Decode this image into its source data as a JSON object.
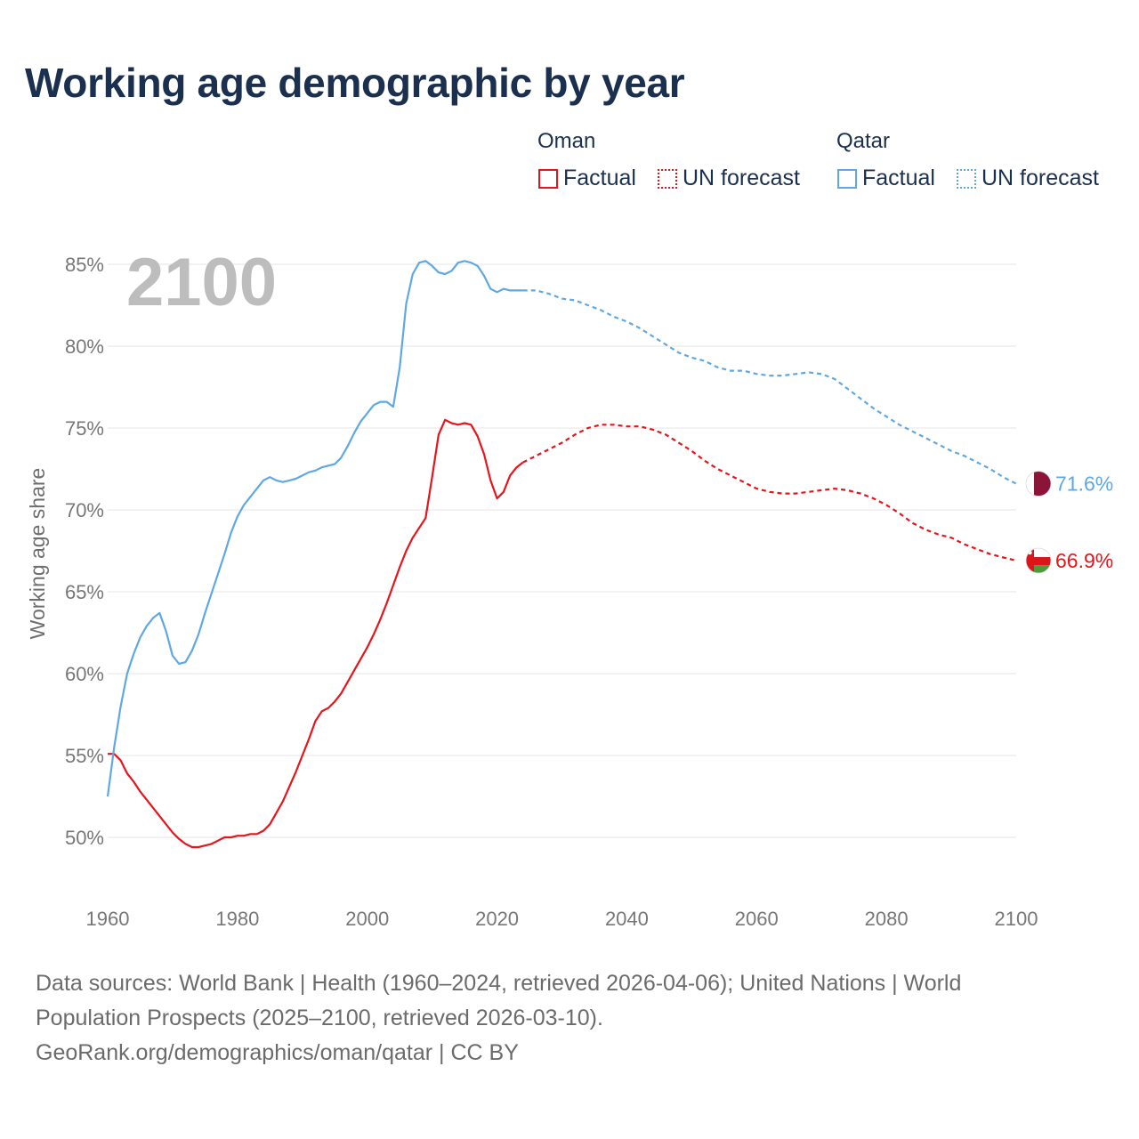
{
  "title": "Working age demographic by year",
  "legend": {
    "groups": [
      {
        "name": "Oman",
        "color": "#e8141b",
        "items": [
          {
            "label": "Factual",
            "style": "solid"
          },
          {
            "label": "UN forecast",
            "style": "dotted"
          }
        ]
      },
      {
        "name": "Qatar",
        "color": "#5fa8e4",
        "items": [
          {
            "label": "Factual",
            "style": "solid"
          },
          {
            "label": "UN forecast",
            "style": "dotted"
          }
        ]
      }
    ]
  },
  "footer": {
    "line1": "Data sources: World Bank | Health (1960–2024, retrieved 2026-04-06); United Nations | World",
    "line2": "Population Prospects (2025–2100, retrieved 2026-03-10).",
    "line3": "GeoRank.org/demographics/oman/qatar | CC BY"
  },
  "chart_data": {
    "type": "line",
    "title": "Working age demographic by year",
    "year_label": "2100",
    "xlabel": "",
    "ylabel": "Working age share",
    "xlim": [
      1960,
      2100
    ],
    "ylim": [
      48,
      86
    ],
    "x_ticks": [
      1960,
      1980,
      2000,
      2020,
      2040,
      2060,
      2080,
      2100
    ],
    "x_tick_labels": [
      "1960",
      "1980",
      "2000",
      "2020",
      "2040",
      "2060",
      "2080",
      "2100"
    ],
    "y_ticks": [
      50,
      55,
      60,
      65,
      70,
      75,
      80,
      85
    ],
    "y_tick_labels": [
      "50%",
      "55%",
      "60%",
      "65%",
      "70%",
      "75%",
      "80%",
      "85%"
    ],
    "grid": true,
    "forecast_start": 2024,
    "series": [
      {
        "name": "Oman",
        "color": "#e8141b",
        "end_label": "66.9%",
        "flag_icon": "oman-flag-icon",
        "points": [
          [
            1960,
            55.1
          ],
          [
            1961,
            55.1
          ],
          [
            1962,
            54.7
          ],
          [
            1963,
            53.9
          ],
          [
            1964,
            53.4
          ],
          [
            1965,
            52.8
          ],
          [
            1966,
            52.3
          ],
          [
            1967,
            51.8
          ],
          [
            1968,
            51.3
          ],
          [
            1969,
            50.8
          ],
          [
            1970,
            50.3
          ],
          [
            1971,
            49.9
          ],
          [
            1972,
            49.6
          ],
          [
            1973,
            49.4
          ],
          [
            1974,
            49.4
          ],
          [
            1975,
            49.5
          ],
          [
            1976,
            49.6
          ],
          [
            1977,
            49.8
          ],
          [
            1978,
            50.0
          ],
          [
            1979,
            50.0
          ],
          [
            1980,
            50.1
          ],
          [
            1981,
            50.1
          ],
          [
            1982,
            50.2
          ],
          [
            1983,
            50.2
          ],
          [
            1984,
            50.4
          ],
          [
            1985,
            50.8
          ],
          [
            1986,
            51.5
          ],
          [
            1987,
            52.2
          ],
          [
            1988,
            53.1
          ],
          [
            1989,
            54.0
          ],
          [
            1990,
            55.0
          ],
          [
            1991,
            56.0
          ],
          [
            1992,
            57.1
          ],
          [
            1993,
            57.7
          ],
          [
            1994,
            57.9
          ],
          [
            1995,
            58.3
          ],
          [
            1996,
            58.8
          ],
          [
            1997,
            59.5
          ],
          [
            1998,
            60.2
          ],
          [
            1999,
            60.9
          ],
          [
            2000,
            61.6
          ],
          [
            2001,
            62.4
          ],
          [
            2002,
            63.3
          ],
          [
            2003,
            64.3
          ],
          [
            2004,
            65.4
          ],
          [
            2005,
            66.5
          ],
          [
            2006,
            67.5
          ],
          [
            2007,
            68.3
          ],
          [
            2008,
            68.9
          ],
          [
            2009,
            69.5
          ],
          [
            2010,
            72.0
          ],
          [
            2011,
            74.6
          ],
          [
            2012,
            75.5
          ],
          [
            2013,
            75.3
          ],
          [
            2014,
            75.2
          ],
          [
            2015,
            75.3
          ],
          [
            2016,
            75.2
          ],
          [
            2017,
            74.5
          ],
          [
            2018,
            73.4
          ],
          [
            2019,
            71.8
          ],
          [
            2020,
            70.7
          ],
          [
            2021,
            71.1
          ],
          [
            2022,
            72.1
          ],
          [
            2023,
            72.6
          ],
          [
            2024,
            72.9
          ],
          [
            2026,
            73.3
          ],
          [
            2028,
            73.7
          ],
          [
            2030,
            74.1
          ],
          [
            2032,
            74.6
          ],
          [
            2034,
            75.0
          ],
          [
            2036,
            75.2
          ],
          [
            2038,
            75.2
          ],
          [
            2040,
            75.1
          ],
          [
            2042,
            75.1
          ],
          [
            2044,
            74.9
          ],
          [
            2046,
            74.6
          ],
          [
            2048,
            74.1
          ],
          [
            2050,
            73.6
          ],
          [
            2052,
            73.0
          ],
          [
            2054,
            72.5
          ],
          [
            2056,
            72.1
          ],
          [
            2058,
            71.7
          ],
          [
            2060,
            71.3
          ],
          [
            2062,
            71.1
          ],
          [
            2064,
            71.0
          ],
          [
            2066,
            71.0
          ],
          [
            2068,
            71.1
          ],
          [
            2070,
            71.2
          ],
          [
            2072,
            71.3
          ],
          [
            2074,
            71.2
          ],
          [
            2076,
            71.0
          ],
          [
            2078,
            70.7
          ],
          [
            2080,
            70.3
          ],
          [
            2082,
            69.8
          ],
          [
            2084,
            69.2
          ],
          [
            2086,
            68.8
          ],
          [
            2088,
            68.5
          ],
          [
            2090,
            68.3
          ],
          [
            2092,
            67.9
          ],
          [
            2094,
            67.6
          ],
          [
            2096,
            67.3
          ],
          [
            2098,
            67.1
          ],
          [
            2100,
            66.9
          ]
        ]
      },
      {
        "name": "Qatar",
        "color": "#5fa8e4",
        "end_label": "71.6%",
        "flag_icon": "qatar-flag-icon",
        "points": [
          [
            1960,
            52.5
          ],
          [
            1961,
            55.5
          ],
          [
            1962,
            58.0
          ],
          [
            1963,
            60.0
          ],
          [
            1964,
            61.2
          ],
          [
            1965,
            62.2
          ],
          [
            1966,
            62.9
          ],
          [
            1967,
            63.4
          ],
          [
            1968,
            63.7
          ],
          [
            1969,
            62.6
          ],
          [
            1970,
            61.1
          ],
          [
            1971,
            60.6
          ],
          [
            1972,
            60.7
          ],
          [
            1973,
            61.4
          ],
          [
            1974,
            62.4
          ],
          [
            1975,
            63.7
          ],
          [
            1976,
            64.9
          ],
          [
            1977,
            66.1
          ],
          [
            1978,
            67.3
          ],
          [
            1979,
            68.6
          ],
          [
            1980,
            69.6
          ],
          [
            1981,
            70.3
          ],
          [
            1982,
            70.8
          ],
          [
            1983,
            71.3
          ],
          [
            1984,
            71.8
          ],
          [
            1985,
            72.0
          ],
          [
            1986,
            71.8
          ],
          [
            1987,
            71.7
          ],
          [
            1988,
            71.8
          ],
          [
            1989,
            71.9
          ],
          [
            1990,
            72.1
          ],
          [
            1991,
            72.3
          ],
          [
            1992,
            72.4
          ],
          [
            1993,
            72.6
          ],
          [
            1994,
            72.7
          ],
          [
            1995,
            72.8
          ],
          [
            1996,
            73.2
          ],
          [
            1997,
            73.9
          ],
          [
            1998,
            74.7
          ],
          [
            1999,
            75.4
          ],
          [
            2000,
            75.9
          ],
          [
            2001,
            76.4
          ],
          [
            2002,
            76.6
          ],
          [
            2003,
            76.6
          ],
          [
            2004,
            76.3
          ],
          [
            2005,
            78.7
          ],
          [
            2006,
            82.6
          ],
          [
            2007,
            84.4
          ],
          [
            2008,
            85.1
          ],
          [
            2009,
            85.2
          ],
          [
            2010,
            84.9
          ],
          [
            2011,
            84.5
          ],
          [
            2012,
            84.4
          ],
          [
            2013,
            84.6
          ],
          [
            2014,
            85.1
          ],
          [
            2015,
            85.2
          ],
          [
            2016,
            85.1
          ],
          [
            2017,
            84.9
          ],
          [
            2018,
            84.3
          ],
          [
            2019,
            83.5
          ],
          [
            2020,
            83.3
          ],
          [
            2021,
            83.5
          ],
          [
            2022,
            83.4
          ],
          [
            2024,
            83.4
          ],
          [
            2026,
            83.4
          ],
          [
            2028,
            83.2
          ],
          [
            2030,
            82.9
          ],
          [
            2032,
            82.8
          ],
          [
            2034,
            82.5
          ],
          [
            2036,
            82.2
          ],
          [
            2038,
            81.8
          ],
          [
            2040,
            81.5
          ],
          [
            2042,
            81.1
          ],
          [
            2044,
            80.6
          ],
          [
            2046,
            80.1
          ],
          [
            2048,
            79.6
          ],
          [
            2050,
            79.3
          ],
          [
            2052,
            79.1
          ],
          [
            2054,
            78.7
          ],
          [
            2056,
            78.5
          ],
          [
            2058,
            78.5
          ],
          [
            2060,
            78.3
          ],
          [
            2062,
            78.2
          ],
          [
            2064,
            78.2
          ],
          [
            2066,
            78.3
          ],
          [
            2068,
            78.4
          ],
          [
            2070,
            78.3
          ],
          [
            2072,
            78.0
          ],
          [
            2074,
            77.4
          ],
          [
            2076,
            76.8
          ],
          [
            2078,
            76.2
          ],
          [
            2080,
            75.7
          ],
          [
            2082,
            75.2
          ],
          [
            2084,
            74.8
          ],
          [
            2086,
            74.4
          ],
          [
            2088,
            74.0
          ],
          [
            2090,
            73.6
          ],
          [
            2092,
            73.3
          ],
          [
            2094,
            72.9
          ],
          [
            2096,
            72.5
          ],
          [
            2098,
            72.0
          ],
          [
            2100,
            71.6
          ]
        ]
      }
    ]
  }
}
